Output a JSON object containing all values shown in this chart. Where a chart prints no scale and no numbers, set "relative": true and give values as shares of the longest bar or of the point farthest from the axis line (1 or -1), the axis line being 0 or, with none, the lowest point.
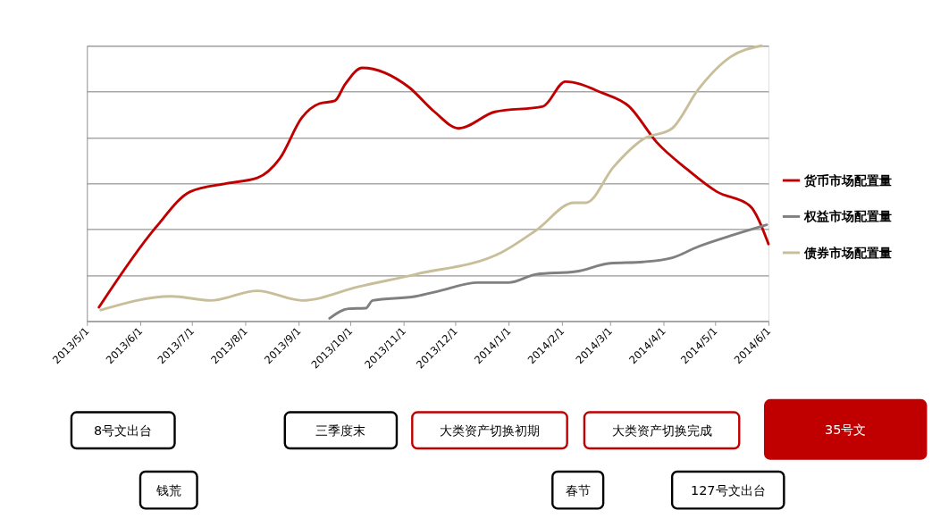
{
  "chart_data": {
    "type": "line",
    "relative": true,
    "grid": "y",
    "legend": "right",
    "line_style": "solid",
    "xlim": [
      "2013-05-01",
      "2014-06-01"
    ],
    "xticks": [
      {
        "value": "2013-05-01",
        "label": "2013/5/1"
      },
      {
        "value": "2013-06-01",
        "label": "2013/6/1"
      },
      {
        "value": "2013-07-01",
        "label": "2013/7/1"
      },
      {
        "value": "2013-08-01",
        "label": "2013/8/1"
      },
      {
        "value": "2013-09-01",
        "label": "2013/9/1"
      },
      {
        "value": "2013-10-01",
        "label": "2013/10/1"
      },
      {
        "value": "2013-11-01",
        "label": "2013/11/1"
      },
      {
        "value": "2013-12-01",
        "label": "2013/12/1"
      },
      {
        "value": "2014-01-01",
        "label": "2014/1/1"
      },
      {
        "value": "2014-02-01",
        "label": "2014/2/1"
      },
      {
        "value": "2014-03-01",
        "label": "2014/3/1"
      },
      {
        "value": "2014-04-01",
        "label": "2014/4/1"
      },
      {
        "value": "2014-05-01",
        "label": "2014/5/1"
      },
      {
        "value": "2014-06-01",
        "label": "2014/6/1"
      }
    ],
    "series": [
      {
        "name": "货币市场配置量",
        "color": "#c00000",
        "x": [
          "2013-05-08",
          "2013-06-10",
          "2013-06-30",
          "2013-07-21",
          "2013-08-08",
          "2013-08-21",
          "2013-09-03",
          "2013-09-13",
          "2013-09-22",
          "2013-09-28",
          "2013-10-08",
          "2013-11-04",
          "2013-11-19",
          "2013-12-03",
          "2013-12-24",
          "2014-01-21",
          "2014-02-03",
          "2014-02-24",
          "2014-03-12",
          "2014-03-28",
          "2014-04-15",
          "2014-05-02",
          "2014-05-21",
          "2014-06-01"
        ],
        "values": [
          0.05,
          0.34,
          0.47,
          0.5,
          0.52,
          0.59,
          0.74,
          0.79,
          0.8,
          0.86,
          0.92,
          0.85,
          0.76,
          0.7,
          0.76,
          0.78,
          0.87,
          0.83,
          0.78,
          0.65,
          0.55,
          0.47,
          0.42,
          0.28
        ]
      },
      {
        "name": "权益市场配置量",
        "color": "#808080",
        "x": [
          "2013-09-19",
          "2013-09-30",
          "2013-10-10",
          "2013-10-14",
          "2013-11-08",
          "2013-11-22",
          "2013-12-14",
          "2014-01-01",
          "2014-01-17",
          "2014-02-09",
          "2014-03-01",
          "2014-03-20",
          "2014-04-06",
          "2014-04-21",
          "2014-05-10",
          "2014-05-31"
        ],
        "values": [
          0.01,
          0.045,
          0.047,
          0.075,
          0.09,
          0.11,
          0.14,
          0.14,
          0.17,
          0.18,
          0.21,
          0.215,
          0.23,
          0.27,
          0.31,
          0.35
        ]
      },
      {
        "name": "债券市场配置量",
        "color": "#c8bf9a",
        "x": [
          "2013-05-09",
          "2013-06-19",
          "2013-07-12",
          "2013-08-08",
          "2013-09-03",
          "2013-10-06",
          "2013-11-08",
          "2013-12-28",
          "2014-01-17",
          "2014-02-08",
          "2014-02-15",
          "2014-03-03",
          "2014-03-20",
          "2014-04-06",
          "2014-04-21",
          "2014-05-10",
          "2014-05-28"
        ],
        "values": [
          0.04,
          0.09,
          0.075,
          0.11,
          0.075,
          0.125,
          0.17,
          0.25,
          0.33,
          0.43,
          0.43,
          0.56,
          0.66,
          0.7,
          0.84,
          0.96,
          1.0
        ]
      }
    ],
    "annotations": [
      "8号文出台",
      "钱荒",
      "三季度末",
      "大类资产切换初期",
      "春节",
      "大类资产切换完成",
      "127号文出台",
      "35号文"
    ]
  }
}
